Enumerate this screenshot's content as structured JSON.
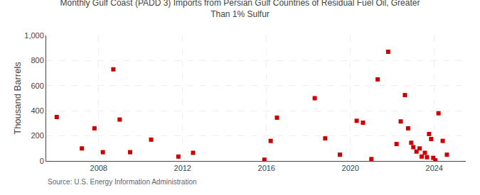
{
  "chart_data": {
    "type": "scatter",
    "title": "Monthly Gulf Coast (PADD 3) Imports from Persian Gulf Countries of Residual Fuel Oil, Greater\nThan 1% Sulfur",
    "ylabel": "Thousand Barrels",
    "annotations": [
      "Source: U.S. Energy Information Administration"
    ],
    "color": "#cc0000",
    "marker": "square",
    "grid": true,
    "xlim": [
      2005.5,
      2025.5
    ],
    "xticks": [
      2008,
      2012,
      2016,
      2020,
      2024
    ],
    "ylim": [
      0,
      1000
    ],
    "yticks": [
      0,
      200,
      400,
      600,
      800,
      {
        "value": 1000,
        "label": "1,000"
      }
    ],
    "x": [
      2006.0,
      2007.2,
      2007.8,
      2008.2,
      2008.7,
      2009.0,
      2009.5,
      2010.5,
      2011.8,
      2012.5,
      2015.9,
      2016.2,
      2016.5,
      2018.3,
      2018.8,
      2019.5,
      2020.3,
      2020.6,
      2021.0,
      2021.3,
      2021.8,
      2022.2,
      2022.4,
      2022.6,
      2022.75,
      2022.9,
      2023.0,
      2023.15,
      2023.3,
      2023.4,
      2023.55,
      2023.65,
      2023.75,
      2023.85,
      2023.95,
      2024.05,
      2024.2,
      2024.4,
      2024.6
    ],
    "values": [
      350,
      100,
      260,
      70,
      730,
      330,
      70,
      170,
      35,
      65,
      10,
      160,
      345,
      500,
      180,
      50,
      320,
      305,
      15,
      650,
      870,
      135,
      315,
      525,
      260,
      145,
      110,
      75,
      100,
      35,
      65,
      30,
      215,
      175,
      25,
      5,
      380,
      160,
      50
    ]
  }
}
